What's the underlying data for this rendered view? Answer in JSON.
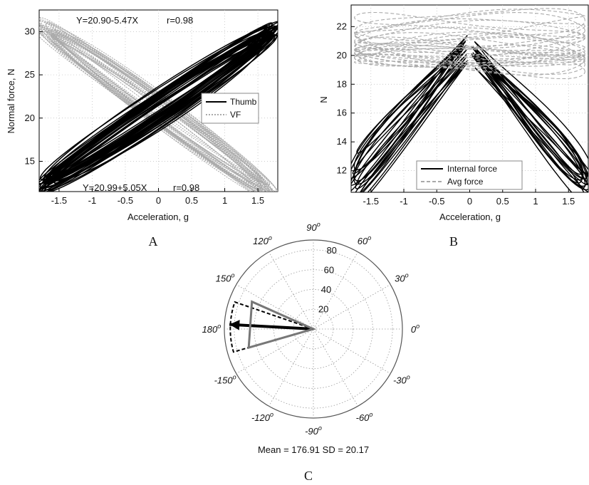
{
  "chart_data": [
    {
      "panel": "A",
      "type": "line",
      "xlabel": "Acceleration, g",
      "ylabel": "Normal force, N",
      "xlim": [
        -1.8,
        1.8
      ],
      "ylim": [
        11.5,
        32.5
      ],
      "xticks": [
        -1.5,
        -1,
        -0.5,
        0,
        0.5,
        1,
        1.5
      ],
      "xtick_labels": [
        "-1.5",
        "-1",
        "-0.5",
        "0",
        "0.5",
        "1",
        "1.5"
      ],
      "yticks": [
        15,
        20,
        25,
        30
      ],
      "ytick_labels": [
        "15",
        "20",
        "25",
        "30"
      ],
      "grid": true,
      "legend_position": "right",
      "series": [
        {
          "name": "Thumb",
          "color": "#000000",
          "style": "solid",
          "intercept": 20.99,
          "slope": 5.05,
          "loop_amplitude": 1.6
        },
        {
          "name": "VF",
          "color": "#aaaaaa",
          "style": "dotted",
          "intercept": 20.9,
          "slope": -5.47,
          "loop_amplitude": 1.4
        }
      ],
      "annotations": [
        {
          "text": "Y=20.90-5.47X",
          "r": "r=0.98",
          "position": "top"
        },
        {
          "text": "Y=20.99+5.05X",
          "r": "r=0.98",
          "position": "bottom"
        }
      ]
    },
    {
      "panel": "B",
      "type": "line",
      "xlabel": "Acceleration, g",
      "ylabel": "N",
      "xlim": [
        -1.8,
        1.8
      ],
      "ylim": [
        10.5,
        23.5
      ],
      "xticks": [
        -1.5,
        -1,
        -0.5,
        0,
        0.5,
        1,
        1.5
      ],
      "xtick_labels": [
        "-1.5",
        "-1",
        "-0.5",
        "0",
        "0.5",
        "1",
        "1.5"
      ],
      "yticks": [
        12,
        14,
        16,
        18,
        20,
        22
      ],
      "ytick_labels": [
        "12",
        "14",
        "16",
        "18",
        "20",
        "22"
      ],
      "grid": true,
      "legend_position": "bottom-right",
      "series": [
        {
          "name": "Internal force",
          "color": "#000000",
          "style": "solid",
          "peak": 21.6,
          "slope": 5.4
        },
        {
          "name": "Avg force",
          "color": "#aaaaaa",
          "style": "dashed",
          "mean": 21.0,
          "spread": 1.6
        }
      ]
    },
    {
      "panel": "C",
      "type": "polar",
      "r_ticks": [
        20,
        40,
        60,
        80
      ],
      "r_tick_labels": [
        "20",
        "40",
        "60",
        "80"
      ],
      "r_max": 90,
      "angle_ticks": [
        0,
        30,
        60,
        90,
        120,
        150,
        180,
        -150,
        -120,
        -90,
        -60,
        -30
      ],
      "angle_labels": [
        "0",
        "30",
        "60",
        "90",
        "120",
        "150",
        "180",
        "-150",
        "-120",
        "-90",
        "-60",
        "-30"
      ],
      "degree_mark": "o",
      "mean": 176.91,
      "sd": 20.17,
      "summary_text": "Mean = 176.91 SD = 20.17",
      "shapes": [
        {
          "kind": "mean-arrow",
          "angle": 176.91,
          "r": 85,
          "color": "#000000"
        },
        {
          "kind": "dashed-sector",
          "from": 161,
          "to": 196,
          "r": 84,
          "color": "#000000"
        },
        {
          "kind": "triangle",
          "from": 156,
          "to": 196,
          "r": 68,
          "color": "#777777"
        }
      ]
    }
  ],
  "panel_labels": [
    "A",
    "B",
    "C"
  ]
}
